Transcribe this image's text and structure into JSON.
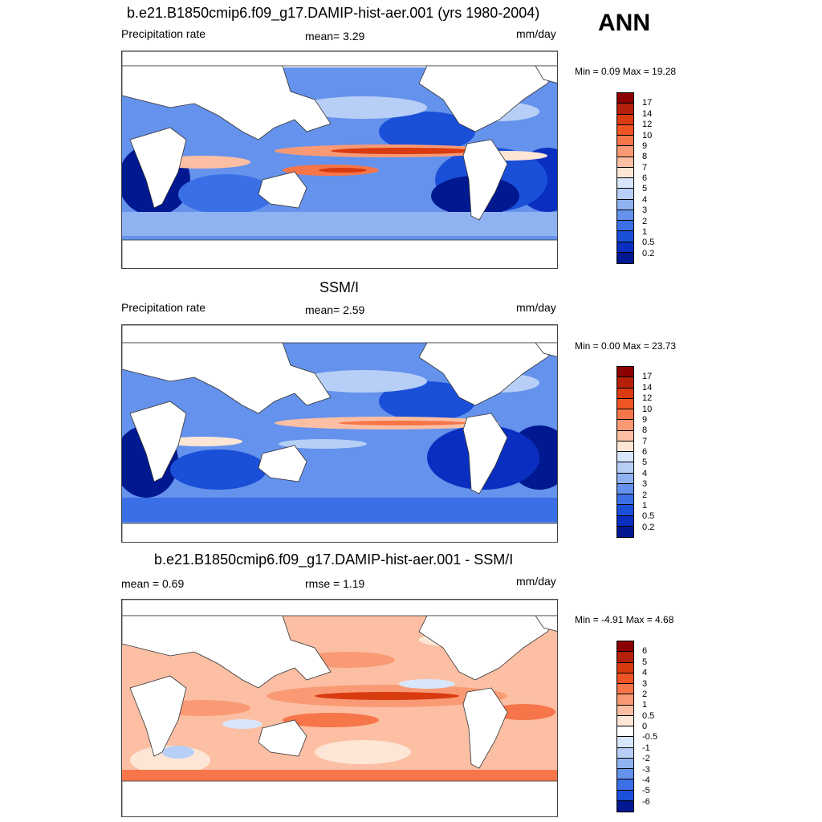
{
  "season": "ANN",
  "panels": [
    {
      "title": "b.e21.B1850cmip6.f09_g17.DAMIP-hist-aer.001 (yrs 1980-2004)",
      "left_label": "Precipitation rate",
      "center_label": "mean=   3.29",
      "units": "mm/day",
      "minmax": "Min =   0.09 Max =  19.28",
      "colorbar": {
        "labels": [
          "17",
          "14",
          "12",
          "10",
          "9",
          "8",
          "7",
          "6",
          "5",
          "4",
          "3",
          "2",
          "1",
          "0.5",
          "0.2"
        ],
        "colors": [
          "#8b0000",
          "#b5200a",
          "#d93a10",
          "#ee5424",
          "#f6764a",
          "#f99a74",
          "#fcbfa4",
          "#fde6d6",
          "#d8e6fb",
          "#b7cff6",
          "#8fb2f1",
          "#6592ec",
          "#3a6fe6",
          "#1a4fd8",
          "#0a2fc0",
          "#001890"
        ]
      }
    },
    {
      "title": "SSM/I",
      "left_label": "Precipitation rate",
      "center_label": "mean=   2.59",
      "units": "mm/day",
      "minmax": "Min =   0.00 Max =  23.73",
      "colorbar": {
        "labels": [
          "17",
          "14",
          "12",
          "10",
          "9",
          "8",
          "7",
          "6",
          "5",
          "4",
          "3",
          "2",
          "1",
          "0.5",
          "0.2"
        ],
        "colors": [
          "#8b0000",
          "#b5200a",
          "#d93a10",
          "#ee5424",
          "#f6764a",
          "#f99a74",
          "#fcbfa4",
          "#fde6d6",
          "#d8e6fb",
          "#b7cff6",
          "#8fb2f1",
          "#6592ec",
          "#3a6fe6",
          "#1a4fd8",
          "#0a2fc0",
          "#001890"
        ]
      }
    },
    {
      "title": "b.e21.B1850cmip6.f09_g17.DAMIP-hist-aer.001 - SSM/I",
      "left_label": "mean =   0.69",
      "center_label": "rmse =   1.19",
      "units": "mm/day",
      "minmax": "Min =  -4.91 Max =   4.68",
      "colorbar": {
        "labels": [
          "6",
          "5",
          "4",
          "3",
          "2",
          "1",
          "0.5",
          "0",
          "-0.5",
          "-1",
          "-2",
          "-3",
          "-4",
          "-5",
          "-6"
        ],
        "colors": [
          "#8b0000",
          "#b5200a",
          "#d93a10",
          "#ee5424",
          "#f6764a",
          "#f99a74",
          "#fcbfa4",
          "#fde6d6",
          "#ffffff",
          "#d8e6fb",
          "#b7cff6",
          "#8fb2f1",
          "#6592ec",
          "#3a6fe6",
          "#1a4fd8",
          "#001890"
        ]
      }
    }
  ]
}
